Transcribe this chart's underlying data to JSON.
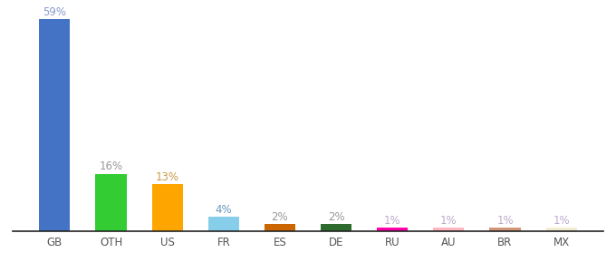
{
  "categories": [
    "GB",
    "OTH",
    "US",
    "FR",
    "ES",
    "DE",
    "RU",
    "AU",
    "BR",
    "MX"
  ],
  "values": [
    59,
    16,
    13,
    4,
    2,
    2,
    1,
    1,
    1,
    1
  ],
  "labels": [
    "59%",
    "16%",
    "13%",
    "4%",
    "2%",
    "2%",
    "1%",
    "1%",
    "1%",
    "1%"
  ],
  "bar_colors": [
    "#4472C4",
    "#33CC33",
    "#FFA500",
    "#87CEEB",
    "#CC6600",
    "#2E6B2E",
    "#FF00AA",
    "#FFB6C1",
    "#D2957A",
    "#F0EDD0"
  ],
  "label_colors": [
    "#8899CC",
    "#999999",
    "#CC9944",
    "#6699BB",
    "#999999",
    "#999999",
    "#BBAACC",
    "#BBAACC",
    "#BBAACC",
    "#BBAACC"
  ],
  "ylim": [
    0,
    62
  ],
  "figsize": [
    6.8,
    3.0
  ],
  "dpi": 100,
  "background_color": "#ffffff",
  "label_fontsize": 8.5,
  "tick_fontsize": 8.5,
  "bar_width": 0.55
}
